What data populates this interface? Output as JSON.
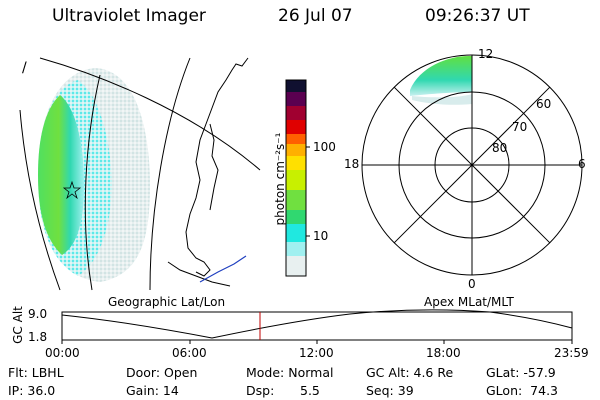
{
  "header": {
    "app_title": "Ultraviolet Imager",
    "date": "26 Jul 07",
    "time": "09:26:37 UT"
  },
  "geo_panel": {
    "label": "Geographic Lat/Lon",
    "track_marker": "/"
  },
  "colorbar": {
    "unit_label": "photon cm⁻²s⁻¹",
    "ticks": [
      "100",
      "10"
    ],
    "colors": [
      "#101030",
      "#5a0050",
      "#a00030",
      "#e00000",
      "#ff6000",
      "#ffb000",
      "#ffe000",
      "#c8f000",
      "#70e040",
      "#30d870",
      "#20e8e0",
      "#a0f0f0",
      "#e8f0f0"
    ]
  },
  "polar_panel": {
    "label": "Apex MLat/MLT",
    "mlt_labels": {
      "top": "12",
      "left": "18",
      "right": "6",
      "bottom": "0"
    },
    "lat_labels": [
      "60",
      "70",
      "80"
    ]
  },
  "altitude_strip": {
    "axis_title": "GC Alt",
    "y_ticks": [
      "9.0",
      "1.8"
    ],
    "x_ticks": [
      "00:00",
      "06:00",
      "12:00",
      "18:00",
      "23:59"
    ]
  },
  "info": {
    "filter": "Flt: LBHL",
    "ip": "IP: 36.0",
    "door": "Door: Open",
    "gain": "Gain: 14",
    "mode": "Mode: Normal",
    "dsp_label": "Dsp:",
    "dsp_value": "5.5",
    "gc_alt": "GC Alt: 4.6 Re",
    "seq": "Seq: 39",
    "glat": "GLat: -57.9",
    "glon": "GLon:  74.3"
  }
}
